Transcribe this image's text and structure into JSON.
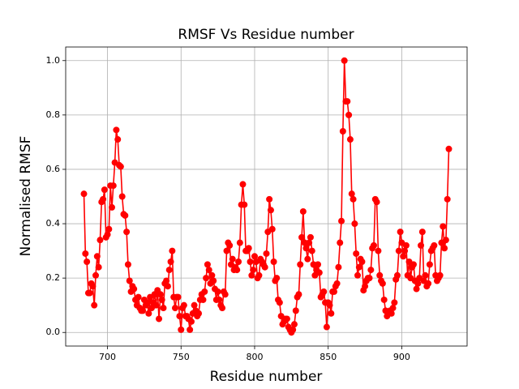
{
  "chart_data": {
    "type": "line",
    "title": "RMSF Vs Residue number",
    "xlabel": "Residue number",
    "ylabel": "Normalised RMSF",
    "x": [
      684,
      685,
      686,
      687,
      688,
      689,
      690,
      691,
      692,
      693,
      694,
      695,
      696,
      697,
      698,
      699,
      700,
      701,
      702,
      703,
      704,
      705,
      706,
      707,
      708,
      709,
      710,
      711,
      712,
      713,
      714,
      715,
      716,
      717,
      718,
      719,
      720,
      721,
      722,
      723,
      724,
      725,
      726,
      727,
      728,
      729,
      730,
      731,
      732,
      733,
      734,
      735,
      736,
      737,
      738,
      739,
      740,
      741,
      742,
      743,
      744,
      745,
      746,
      747,
      748,
      749,
      750,
      751,
      752,
      753,
      754,
      755,
      756,
      757,
      758,
      759,
      760,
      761,
      762,
      763,
      764,
      765,
      766,
      767,
      768,
      769,
      770,
      771,
      772,
      773,
      774,
      775,
      776,
      777,
      778,
      779,
      780,
      781,
      782,
      783,
      784,
      785,
      786,
      787,
      788,
      789,
      790,
      791,
      792,
      793,
      794,
      795,
      796,
      797,
      798,
      799,
      800,
      801,
      802,
      803,
      804,
      805,
      806,
      807,
      808,
      809,
      810,
      811,
      812,
      813,
      814,
      815,
      816,
      817,
      818,
      819,
      820,
      821,
      822,
      823,
      824,
      825,
      826,
      827,
      828,
      829,
      830,
      831,
      832,
      833,
      834,
      835,
      836,
      837,
      838,
      839,
      840,
      841,
      842,
      843,
      844,
      845,
      846,
      847,
      848,
      849,
      850,
      851,
      852,
      853,
      854,
      855,
      856,
      857,
      858,
      859,
      860,
      861,
      862,
      863,
      864,
      865,
      866,
      867,
      868,
      869,
      870,
      871,
      872,
      873,
      874,
      875,
      876,
      877,
      878,
      879,
      880,
      881,
      882,
      883,
      884,
      885,
      886,
      887,
      888,
      889,
      890,
      891,
      892,
      893,
      894,
      895,
      896,
      897,
      898,
      899,
      900,
      901,
      902,
      903,
      904,
      905,
      906,
      907,
      908,
      909,
      910,
      911,
      912,
      913,
      914,
      915,
      916,
      917,
      918,
      919,
      920,
      921,
      922,
      923,
      924,
      925,
      926,
      927,
      928,
      929,
      930,
      931,
      932
    ],
    "series": [
      {
        "name": "RMSF",
        "color": "#ff0000",
        "values": [
          0.51,
          0.29,
          0.26,
          0.145,
          0.145,
          0.18,
          0.17,
          0.1,
          0.21,
          0.28,
          0.24,
          0.34,
          0.48,
          0.49,
          0.525,
          0.35,
          0.36,
          0.38,
          0.54,
          0.46,
          0.54,
          0.625,
          0.745,
          0.71,
          0.615,
          0.61,
          0.5,
          0.435,
          0.43,
          0.37,
          0.25,
          0.19,
          0.15,
          0.17,
          0.16,
          0.12,
          0.1,
          0.13,
          0.09,
          0.08,
          0.08,
          0.12,
          0.1,
          0.11,
          0.07,
          0.13,
          0.09,
          0.11,
          0.14,
          0.1,
          0.155,
          0.05,
          0.14,
          0.12,
          0.09,
          0.18,
          0.19,
          0.17,
          0.23,
          0.26,
          0.3,
          0.13,
          0.09,
          0.13,
          0.13,
          0.06,
          0.01,
          0.09,
          0.1,
          0.06,
          0.06,
          0.05,
          0.01,
          0.04,
          0.07,
          0.1,
          0.08,
          0.06,
          0.07,
          0.12,
          0.14,
          0.12,
          0.15,
          0.2,
          0.25,
          0.23,
          0.18,
          0.21,
          0.19,
          0.16,
          0.12,
          0.15,
          0.12,
          0.1,
          0.09,
          0.15,
          0.14,
          0.3,
          0.33,
          0.32,
          0.25,
          0.27,
          0.23,
          0.24,
          0.23,
          0.26,
          0.33,
          0.47,
          0.545,
          0.47,
          0.3,
          0.3,
          0.31,
          0.26,
          0.21,
          0.23,
          0.28,
          0.26,
          0.2,
          0.21,
          0.27,
          0.26,
          0.25,
          0.24,
          0.29,
          0.37,
          0.49,
          0.45,
          0.38,
          0.26,
          0.19,
          0.2,
          0.12,
          0.11,
          0.06,
          0.03,
          0.04,
          0.05,
          0.05,
          0.02,
          0.01,
          0.0,
          0.01,
          0.03,
          0.08,
          0.13,
          0.14,
          0.25,
          0.35,
          0.445,
          0.33,
          0.31,
          0.27,
          0.33,
          0.35,
          0.3,
          0.25,
          0.21,
          0.23,
          0.25,
          0.22,
          0.13,
          0.14,
          0.15,
          0.11,
          0.02,
          0.11,
          0.1,
          0.07,
          0.15,
          0.15,
          0.17,
          0.18,
          0.24,
          0.33,
          0.41,
          0.74,
          1.0,
          0.85,
          0.85,
          0.8,
          0.71,
          0.51,
          0.49,
          0.4,
          0.29,
          0.21,
          0.24,
          0.27,
          0.26,
          0.155,
          0.17,
          0.19,
          0.2,
          0.2,
          0.23,
          0.31,
          0.32,
          0.49,
          0.48,
          0.3,
          0.21,
          0.19,
          0.18,
          0.12,
          0.08,
          0.06,
          0.07,
          0.08,
          0.07,
          0.09,
          0.11,
          0.195,
          0.21,
          0.3,
          0.37,
          0.33,
          0.28,
          0.3,
          0.32,
          0.21,
          0.26,
          0.2,
          0.24,
          0.25,
          0.19,
          0.16,
          0.18,
          0.2,
          0.32,
          0.37,
          0.19,
          0.21,
          0.17,
          0.18,
          0.25,
          0.3,
          0.31,
          0.32,
          0.21,
          0.19,
          0.2,
          0.21,
          0.33,
          0.39,
          0.31,
          0.34,
          0.49,
          0.675
        ]
      }
    ],
    "xlim": [
      671.6,
      944.4
    ],
    "xticks": [
      700,
      750,
      800,
      850,
      900
    ],
    "ylim": [
      -0.05,
      1.05
    ],
    "yticks": [
      {
        "value": 0,
        "label": "0.0"
      },
      {
        "value": 0.2,
        "label": "0.2"
      },
      {
        "value": 0.4,
        "label": "0.4"
      },
      {
        "value": 0.6,
        "label": "0.6"
      },
      {
        "value": 0.8,
        "label": "0.8"
      },
      {
        "value": 1.0,
        "label": "1.0"
      }
    ],
    "grid": true
  }
}
